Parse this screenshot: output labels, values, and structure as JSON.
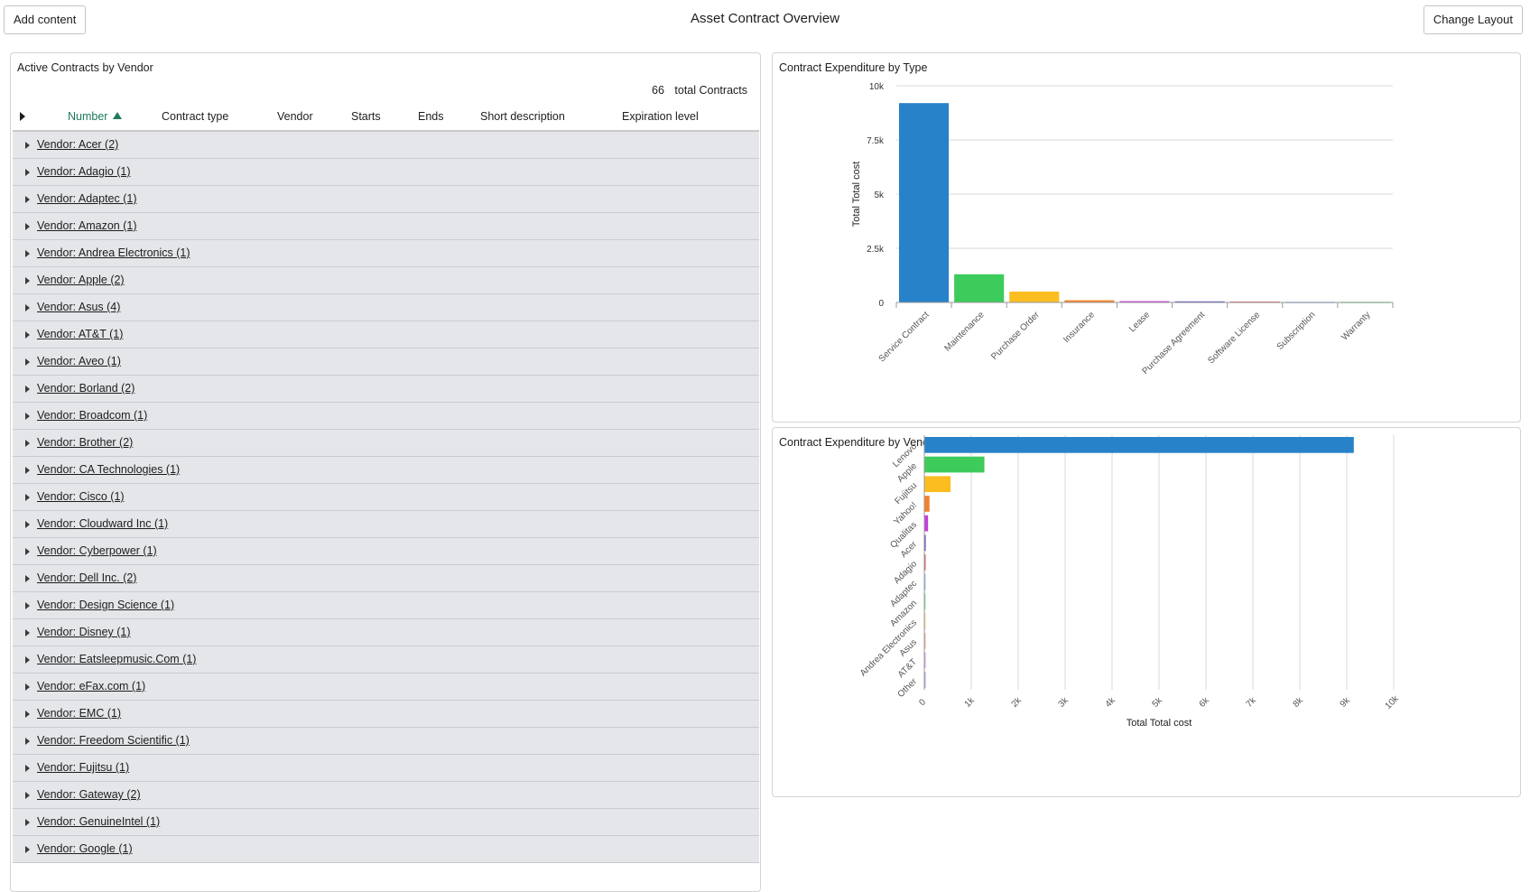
{
  "header": {
    "title": "Asset Contract Overview",
    "add_content_label": "Add content",
    "change_layout_label": "Change Layout"
  },
  "list": {
    "title": "Active Contracts by Vendor",
    "total_count": "66",
    "total_label": "total Contracts",
    "columns": [
      "Number",
      "Contract type",
      "Vendor",
      "Starts",
      "Ends",
      "Short description",
      "Expiration level"
    ],
    "sorted_column": "Number",
    "rows": [
      "Vendor: Acer (2)",
      "Vendor: Adagio (1)",
      "Vendor: Adaptec (1)",
      "Vendor: Amazon (1)",
      "Vendor: Andrea Electronics (1)",
      "Vendor: Apple (2)",
      "Vendor: Asus (4)",
      "Vendor: AT&T (1)",
      "Vendor: Aveo (1)",
      "Vendor: Borland (2)",
      "Vendor: Broadcom (1)",
      "Vendor: Brother (2)",
      "Vendor: CA Technologies (1)",
      "Vendor: Cisco (1)",
      "Vendor: Cloudward Inc (1)",
      "Vendor: Cyberpower (1)",
      "Vendor: Dell Inc. (2)",
      "Vendor: Design Science (1)",
      "Vendor: Disney (1)",
      "Vendor: Eatsleepmusic.Com (1)",
      "Vendor: eFax.com (1)",
      "Vendor: EMC (1)",
      "Vendor: Freedom Scientific (1)",
      "Vendor: Fujitsu (1)",
      "Vendor: Gateway (2)",
      "Vendor: GenuineIntel (1)",
      "Vendor: Google (1)"
    ]
  },
  "chart_data": [
    {
      "type": "bar",
      "title": "Contract Expenditure by Type",
      "xlabel": "",
      "ylabel": "Total Total cost",
      "ylim": [
        0,
        10000
      ],
      "yticks": [
        "0",
        "2.5k",
        "5k",
        "7.5k",
        "10k"
      ],
      "ytick_values": [
        0,
        2500,
        5000,
        7500,
        10000
      ],
      "grid": true,
      "categories": [
        "Service Contract",
        "Maintenance",
        "Purchase Order",
        "Insurance",
        "Lease",
        "Purchase Agreement",
        "Software License",
        "Subscription",
        "Warranty"
      ],
      "values": [
        9200,
        1300,
        500,
        100,
        60,
        50,
        40,
        30,
        30
      ],
      "colors": [
        "#2782c9",
        "#3dcb5b",
        "#fbbd1f",
        "#f4822a",
        "#c53edc",
        "#5a4fc6",
        "#e05d5d",
        "#9ec3ef",
        "#8fe0ac"
      ]
    },
    {
      "type": "bar",
      "orientation": "horizontal",
      "title": "Contract Expenditure by Vendor",
      "xlabel": "Total Total cost",
      "ylabel": "",
      "xlim": [
        0,
        10000
      ],
      "xticks": [
        "0",
        "1k",
        "2k",
        "3k",
        "4k",
        "5k",
        "6k",
        "7k",
        "8k",
        "9k",
        "10k"
      ],
      "xtick_values": [
        0,
        1000,
        2000,
        3000,
        4000,
        5000,
        6000,
        7000,
        8000,
        9000,
        10000
      ],
      "grid": true,
      "categories": [
        "Lenovo",
        "Apple",
        "Fujitsu",
        "Yahoo!",
        "Qualitas",
        "Acer",
        "Adagio",
        "Adaptec",
        "Amazon",
        "Andrea Electronics",
        "Asus",
        "AT&T",
        "Other"
      ],
      "values": [
        9150,
        1280,
        560,
        110,
        80,
        30,
        25,
        20,
        20,
        20,
        20,
        20,
        25
      ],
      "colors": [
        "#2782c9",
        "#3dcb5b",
        "#fbbd1f",
        "#f4822a",
        "#c53edc",
        "#5a4fc6",
        "#e05d5d",
        "#9ec3ef",
        "#8fe0ac",
        "#fad6a0",
        "#f2b594",
        "#d6a3e8",
        "#a9a3e3"
      ]
    }
  ]
}
